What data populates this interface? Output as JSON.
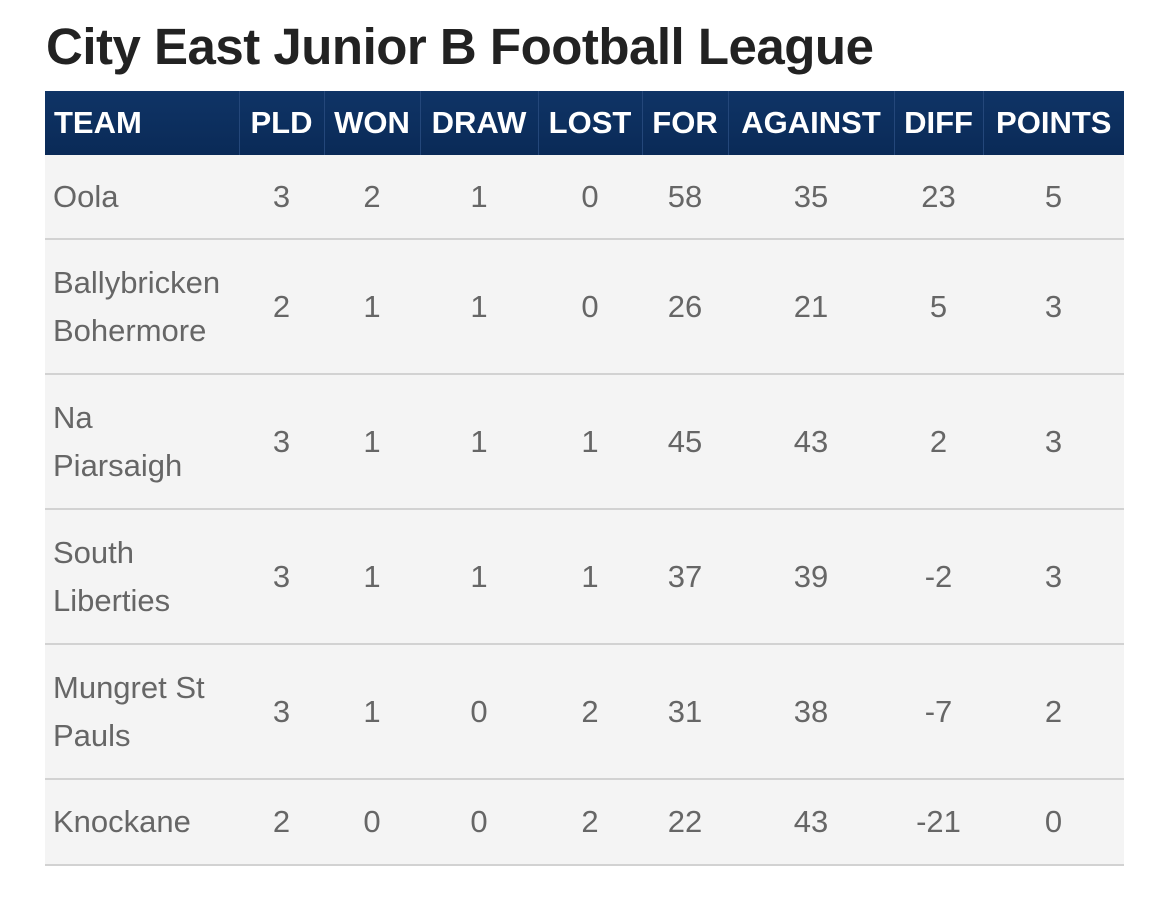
{
  "page": {
    "title": "City East Junior B Football League"
  },
  "table": {
    "headers": {
      "team": "TEAM",
      "pld": "PLD",
      "won": "WON",
      "draw": "DRAW",
      "lost": "LOST",
      "for": "FOR",
      "against": "AGAINST",
      "diff": "DIFF",
      "points": "POINTS"
    },
    "rows": [
      {
        "team": [
          "Oola"
        ],
        "pld": "3",
        "won": "2",
        "draw": "1",
        "lost": "0",
        "for": "58",
        "against": "35",
        "diff": "23",
        "points": "5"
      },
      {
        "team": [
          "Ballybricken",
          "Bohermore"
        ],
        "pld": "2",
        "won": "1",
        "draw": "1",
        "lost": "0",
        "for": "26",
        "against": "21",
        "diff": "5",
        "points": "3"
      },
      {
        "team": [
          "Na",
          "Piarsaigh"
        ],
        "pld": "3",
        "won": "1",
        "draw": "1",
        "lost": "1",
        "for": "45",
        "against": "43",
        "diff": "2",
        "points": "3"
      },
      {
        "team": [
          "South",
          "Liberties"
        ],
        "pld": "3",
        "won": "1",
        "draw": "1",
        "lost": "1",
        "for": "37",
        "against": "39",
        "diff": "-2",
        "points": "3"
      },
      {
        "team": [
          "Mungret St",
          "Pauls"
        ],
        "pld": "3",
        "won": "1",
        "draw": "0",
        "lost": "2",
        "for": "31",
        "against": "38",
        "diff": "-7",
        "points": "2"
      },
      {
        "team": [
          "Knockane"
        ],
        "pld": "2",
        "won": "0",
        "draw": "0",
        "lost": "2",
        "for": "22",
        "against": "43",
        "diff": "-21",
        "points": "0"
      }
    ]
  },
  "colors": {
    "header_bg": "#0a2a57",
    "header_text": "#ffffff",
    "row_bg": "#f4f4f4",
    "cell_text": "#666666",
    "divider": "#d2d2d2",
    "title_text": "#222222"
  }
}
